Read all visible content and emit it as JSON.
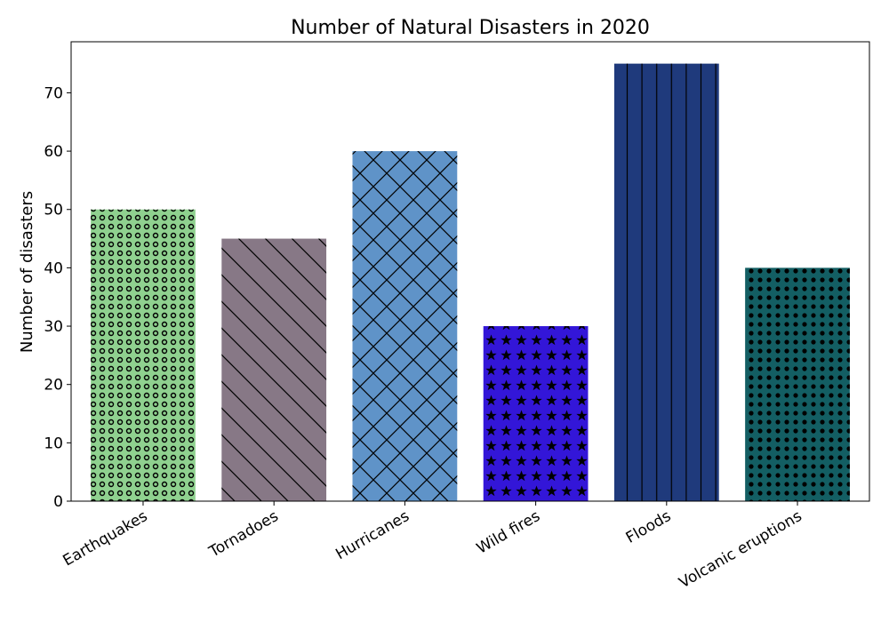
{
  "chart_data": {
    "type": "bar",
    "title": "Number of Natural Disasters in 2020",
    "xlabel": "",
    "ylabel": "Number of disasters",
    "categories": [
      "Earthquakes",
      "Tornadoes",
      "Hurricanes",
      "Wild fires",
      "Floods",
      "Volcanic eruptions"
    ],
    "values": [
      50,
      45,
      60,
      30,
      75,
      40
    ],
    "ylim": [
      0,
      78.75
    ],
    "yticks": [
      0,
      10,
      20,
      30,
      40,
      50,
      60,
      70
    ],
    "grid": false,
    "bar_colors": [
      "#8fd18f",
      "#877886",
      "#5f93c8",
      "#3316d8",
      "#1f3a7c",
      "#135e63"
    ],
    "bar_hatches": [
      "small-circles",
      "diagonal-lines",
      "crosshatch",
      "stars",
      "vertical-lines",
      "dots"
    ]
  }
}
